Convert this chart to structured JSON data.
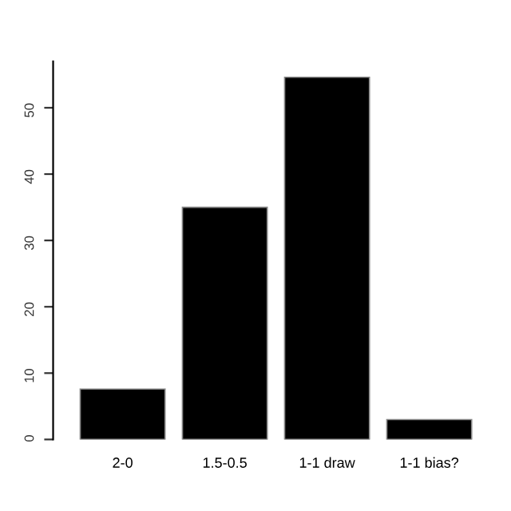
{
  "chart_data": {
    "type": "bar",
    "categories": [
      "2-0",
      "1.5-0.5",
      "1-1 draw",
      "1-1 bias?"
    ],
    "values": [
      7.6,
      35,
      54.6,
      3
    ],
    "color": "#000000",
    "ylim": [
      0,
      57
    ],
    "yticks": [
      0,
      10,
      20,
      30,
      40,
      50
    ],
    "grid": false
  }
}
